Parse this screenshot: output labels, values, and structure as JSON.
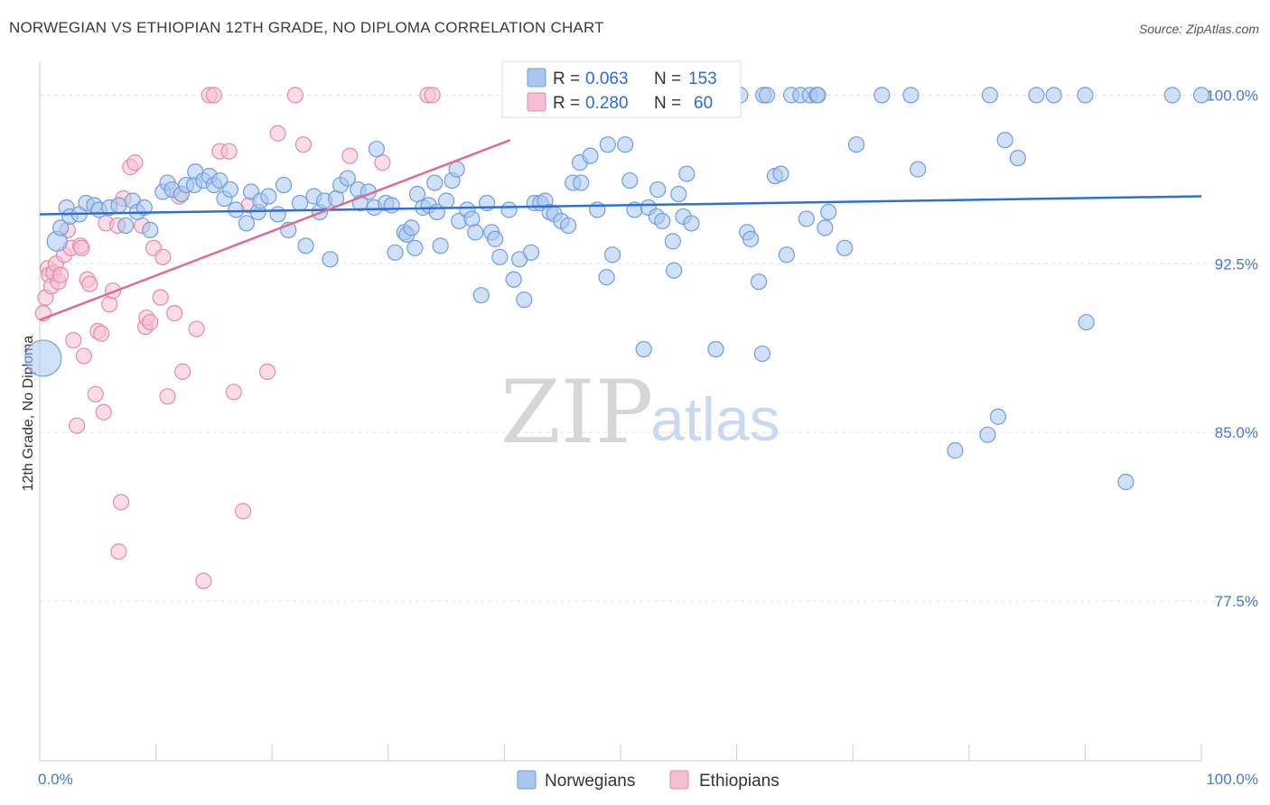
{
  "title": "NORWEGIAN VS ETHIOPIAN 12TH GRADE, NO DIPLOMA CORRELATION CHART",
  "source": "Source: ZipAtlas.com",
  "watermark": {
    "zip": "ZIP",
    "atlas": "atlas"
  },
  "colors": {
    "blue_fill": "#a9c6ee",
    "blue_stroke": "#6f9ddf",
    "blue_line": "#2f6fd0",
    "pink_fill": "#f5bfd1",
    "pink_stroke": "#e48aab",
    "pink_line": "#e06895",
    "grid": "#e3e3e3",
    "axis_text": "#4a78c8"
  },
  "legend": {
    "rows": [
      {
        "r_label": "R = ",
        "r_value": "0.063",
        "n_label": "N = ",
        "n_value": "153"
      },
      {
        "r_label": "R = ",
        "r_value": "0.280",
        "n_label": "N = ",
        "n_value": "60"
      }
    ]
  },
  "bottom_legend": [
    "Norwegians",
    "Ethiopians"
  ],
  "chart_data": {
    "type": "scatter",
    "title": "NORWEGIAN VS ETHIOPIAN 12TH GRADE, NO DIPLOMA CORRELATION CHART",
    "xlabel": "",
    "ylabel": "12th Grade, No Diploma",
    "xlim": [
      0,
      100
    ],
    "ylim": [
      70.4,
      101.5
    ],
    "x_tick_labels": [
      "0.0%",
      "100.0%"
    ],
    "y_ticks": [
      77.5,
      85.0,
      92.5,
      100.0
    ],
    "y_tick_labels": [
      "77.5%",
      "85.0%",
      "92.5%",
      "100.0%"
    ],
    "grid": true,
    "series": [
      {
        "name": "Norwegians",
        "r": 0.063,
        "n": 153,
        "trend": {
          "x": [
            0,
            100
          ],
          "y": [
            94.7,
            95.5
          ]
        },
        "points": [
          [
            0.3,
            88.3
          ],
          [
            1.5,
            93.5
          ],
          [
            1.8,
            94.1
          ],
          [
            2.3,
            95
          ],
          [
            2.6,
            94.6
          ],
          [
            3.4,
            94.7
          ],
          [
            4,
            95.2
          ],
          [
            4.7,
            95.1
          ],
          [
            5.1,
            94.9
          ],
          [
            6,
            95
          ],
          [
            6.8,
            95.1
          ],
          [
            7.4,
            94.2
          ],
          [
            8,
            95.3
          ],
          [
            8.4,
            94.8
          ],
          [
            9,
            95
          ],
          [
            9.5,
            94
          ],
          [
            10.6,
            95.7
          ],
          [
            11,
            96.1
          ],
          [
            11.4,
            95.8
          ],
          [
            12.2,
            95.6
          ],
          [
            12.6,
            96
          ],
          [
            13.3,
            96
          ],
          [
            13.4,
            96.6
          ],
          [
            14.1,
            96.2
          ],
          [
            14.6,
            96.4
          ],
          [
            15,
            96
          ],
          [
            15.5,
            96.2
          ],
          [
            15.9,
            95.4
          ],
          [
            16.4,
            95.8
          ],
          [
            16.9,
            94.9
          ],
          [
            17.8,
            94.3
          ],
          [
            18.2,
            95.7
          ],
          [
            18.8,
            94.8
          ],
          [
            19,
            95.3
          ],
          [
            19.7,
            95.5
          ],
          [
            20.5,
            94.7
          ],
          [
            21,
            96
          ],
          [
            21.4,
            94
          ],
          [
            22.4,
            95.2
          ],
          [
            22.9,
            93.3
          ],
          [
            23.6,
            95.5
          ],
          [
            24.1,
            94.8
          ],
          [
            24.5,
            95.3
          ],
          [
            25,
            92.7
          ],
          [
            25.5,
            95.4
          ],
          [
            25.9,
            96
          ],
          [
            26.5,
            96.3
          ],
          [
            27.4,
            95.8
          ],
          [
            27.6,
            95.2
          ],
          [
            28.3,
            95.7
          ],
          [
            28.8,
            95
          ],
          [
            29,
            97.6
          ],
          [
            29.8,
            95.2
          ],
          [
            30.3,
            95.1
          ],
          [
            30.6,
            93
          ],
          [
            31.4,
            93.9
          ],
          [
            31.6,
            93.8
          ],
          [
            32,
            94.1
          ],
          [
            32.3,
            93.2
          ],
          [
            32.5,
            95.6
          ],
          [
            33,
            95
          ],
          [
            33.5,
            95.1
          ],
          [
            34,
            96.1
          ],
          [
            34.2,
            94.8
          ],
          [
            34.5,
            93.3
          ],
          [
            35,
            95.3
          ],
          [
            35.5,
            96.2
          ],
          [
            35.9,
            96.7
          ],
          [
            36.1,
            94.4
          ],
          [
            36.8,
            94.9
          ],
          [
            37.2,
            94.5
          ],
          [
            37.5,
            93.9
          ],
          [
            38,
            91.1
          ],
          [
            38.5,
            95.2
          ],
          [
            38.9,
            93.9
          ],
          [
            39.2,
            93.6
          ],
          [
            39.6,
            92.8
          ],
          [
            40.4,
            94.9
          ],
          [
            40.8,
            91.8
          ],
          [
            41.3,
            92.7
          ],
          [
            41.7,
            90.9
          ],
          [
            42.3,
            93
          ],
          [
            42.6,
            95.2
          ],
          [
            43.1,
            95.2
          ],
          [
            43.5,
            95.3
          ],
          [
            43.9,
            94.8
          ],
          [
            44.3,
            94.7
          ],
          [
            44.9,
            94.4
          ],
          [
            45.5,
            94.2
          ],
          [
            45.9,
            96.1
          ],
          [
            46.5,
            97
          ],
          [
            46.6,
            96.1
          ],
          [
            47.4,
            97.3
          ],
          [
            48,
            94.9
          ],
          [
            48.8,
            91.9
          ],
          [
            48.9,
            97.8
          ],
          [
            49.3,
            92.9
          ],
          [
            50.4,
            97.8
          ],
          [
            50.8,
            96.2
          ],
          [
            51.2,
            94.9
          ],
          [
            52,
            88.7
          ],
          [
            52.4,
            95
          ],
          [
            53.1,
            94.6
          ],
          [
            53.2,
            95.8
          ],
          [
            53.6,
            94.4
          ],
          [
            54.1,
            100
          ],
          [
            54.5,
            93.5
          ],
          [
            54.6,
            92.2
          ],
          [
            55,
            95.6
          ],
          [
            55.4,
            94.6
          ],
          [
            55.7,
            96.5
          ],
          [
            56.1,
            94.3
          ],
          [
            58.2,
            88.7
          ],
          [
            60.3,
            100
          ],
          [
            60.9,
            93.9
          ],
          [
            61.2,
            93.6
          ],
          [
            61.9,
            91.7
          ],
          [
            62.2,
            88.5
          ],
          [
            62.3,
            100
          ],
          [
            62.6,
            100
          ],
          [
            63.3,
            96.4
          ],
          [
            63.8,
            96.5
          ],
          [
            64.3,
            92.9
          ],
          [
            64.7,
            100
          ],
          [
            65.5,
            100
          ],
          [
            66,
            94.5
          ],
          [
            66.3,
            100
          ],
          [
            66.9,
            100
          ],
          [
            67,
            100
          ],
          [
            67.6,
            94.1
          ],
          [
            67.9,
            94.8
          ],
          [
            69.3,
            93.2
          ],
          [
            70.3,
            97.8
          ],
          [
            72.5,
            100
          ],
          [
            75,
            100
          ],
          [
            75.6,
            96.7
          ],
          [
            78.8,
            84.2
          ],
          [
            81.6,
            84.9
          ],
          [
            81.8,
            100
          ],
          [
            82.5,
            85.7
          ],
          [
            83.1,
            98
          ],
          [
            84.2,
            97.2
          ],
          [
            85.8,
            100
          ],
          [
            87.3,
            100
          ],
          [
            90,
            100
          ],
          [
            90.1,
            89.9
          ],
          [
            93.5,
            82.8
          ],
          [
            97.5,
            100
          ],
          [
            100,
            100
          ]
        ]
      },
      {
        "name": "Ethiopians",
        "r": 0.28,
        "n": 60,
        "trend": {
          "x": [
            0,
            40.5
          ],
          "y": [
            90.0,
            98.0
          ]
        },
        "points": [
          [
            0.3,
            90.3
          ],
          [
            0.5,
            91
          ],
          [
            0.7,
            92.3
          ],
          [
            0.8,
            92
          ],
          [
            1,
            91.5
          ],
          [
            1.2,
            92.1
          ],
          [
            1.4,
            92.5
          ],
          [
            1.6,
            91.7
          ],
          [
            1.8,
            92
          ],
          [
            2.1,
            92.9
          ],
          [
            2.4,
            94
          ],
          [
            2.7,
            93.2
          ],
          [
            2.9,
            89.1
          ],
          [
            3.2,
            85.3
          ],
          [
            3.5,
            93.3
          ],
          [
            3.6,
            93.2
          ],
          [
            3.8,
            88.4
          ],
          [
            4.1,
            91.8
          ],
          [
            4.3,
            91.6
          ],
          [
            4.8,
            86.7
          ],
          [
            5,
            89.5
          ],
          [
            5.3,
            89.4
          ],
          [
            5.5,
            85.9
          ],
          [
            5.7,
            94.3
          ],
          [
            6,
            90.7
          ],
          [
            6.3,
            91.3
          ],
          [
            6.7,
            94.2
          ],
          [
            6.8,
            79.7
          ],
          [
            7,
            81.9
          ],
          [
            7.2,
            95.4
          ],
          [
            7.8,
            96.8
          ],
          [
            8.2,
            97
          ],
          [
            8.8,
            94.2
          ],
          [
            9.1,
            89.7
          ],
          [
            9.2,
            90.1
          ],
          [
            9.5,
            89.9
          ],
          [
            9.8,
            93.2
          ],
          [
            10.4,
            91
          ],
          [
            10.6,
            92.8
          ],
          [
            11,
            86.6
          ],
          [
            11.6,
            90.3
          ],
          [
            12,
            95.5
          ],
          [
            12.3,
            87.7
          ],
          [
            13.5,
            89.6
          ],
          [
            14.1,
            78.4
          ],
          [
            14.6,
            100
          ],
          [
            15,
            100
          ],
          [
            15.5,
            97.5
          ],
          [
            16.3,
            97.5
          ],
          [
            16.7,
            86.8
          ],
          [
            17.5,
            81.5
          ],
          [
            18,
            95.1
          ],
          [
            19.6,
            87.7
          ],
          [
            20.5,
            98.3
          ],
          [
            22,
            100
          ],
          [
            22.7,
            97.8
          ],
          [
            26.7,
            97.3
          ],
          [
            29.5,
            97
          ],
          [
            33.4,
            100
          ],
          [
            33.8,
            100
          ]
        ]
      }
    ]
  }
}
